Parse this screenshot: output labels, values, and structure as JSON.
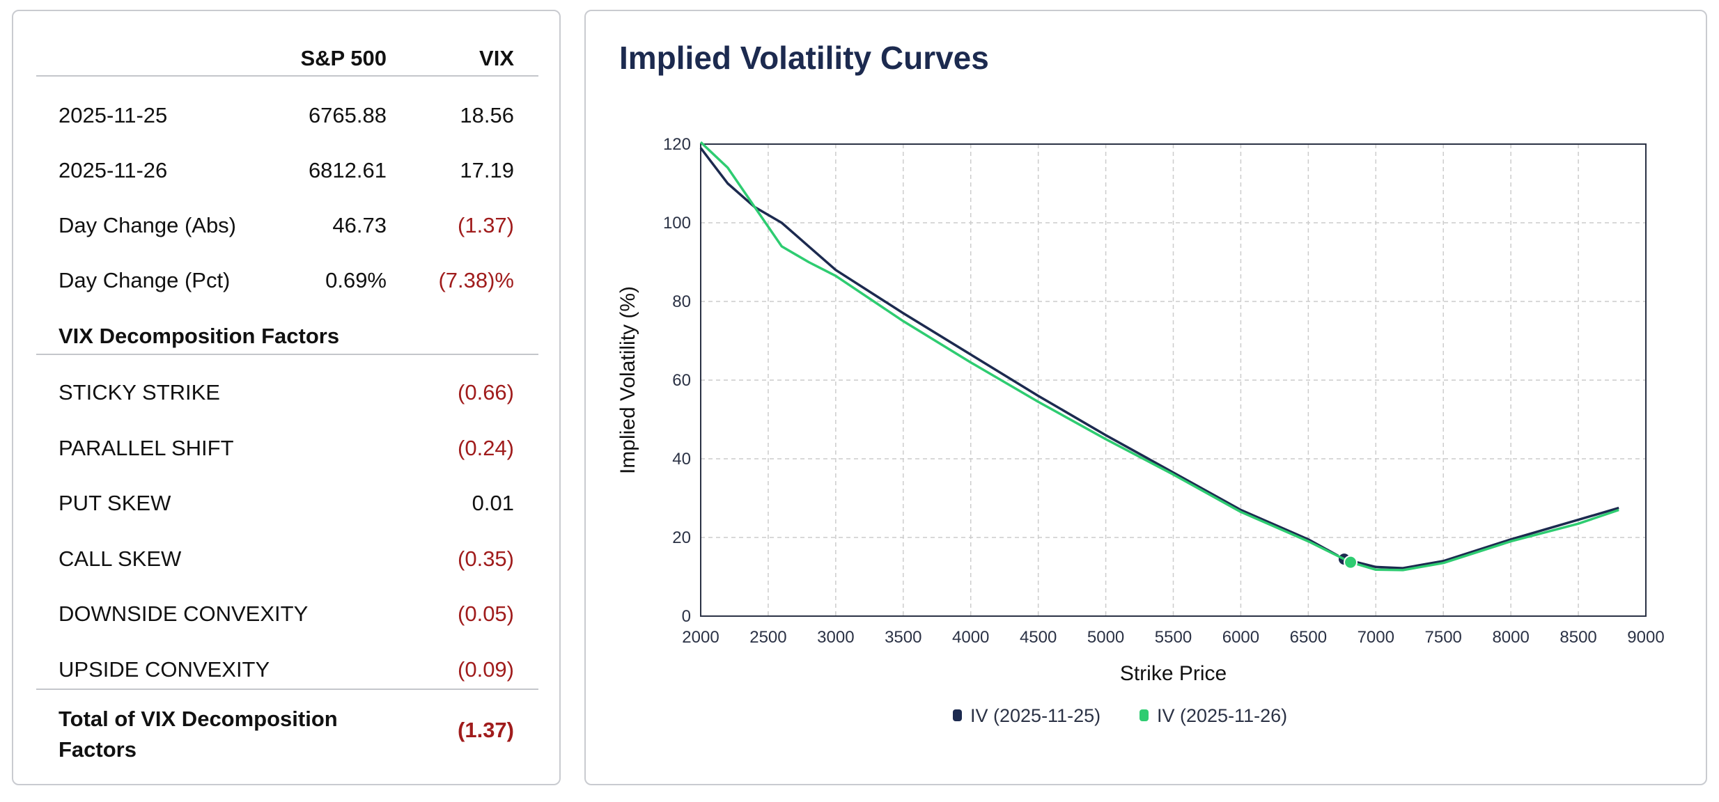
{
  "table": {
    "headers": [
      "",
      "S&P 500",
      "VIX"
    ],
    "rows": [
      {
        "label": "2025-11-25",
        "spx": "6765.88",
        "vix": "18.56",
        "vix_negative": false
      },
      {
        "label": "2025-11-26",
        "spx": "6812.61",
        "vix": "17.19",
        "vix_negative": false
      },
      {
        "label": "Day Change (Abs)",
        "spx": "46.73",
        "vix": "(1.37)",
        "vix_negative": true
      },
      {
        "label": "Day Change (Pct)",
        "spx": "0.69%",
        "vix": "(7.38)%",
        "vix_negative": true
      }
    ],
    "factors_heading": "VIX Decomposition Factors",
    "factors": [
      {
        "label": "STICKY STRIKE",
        "value": "(0.66)",
        "negative": true
      },
      {
        "label": "PARALLEL SHIFT",
        "value": "(0.24)",
        "negative": true
      },
      {
        "label": "PUT SKEW",
        "value": "0.01",
        "negative": false
      },
      {
        "label": "CALL SKEW",
        "value": "(0.35)",
        "negative": true
      },
      {
        "label": "DOWNSIDE CONVEXITY",
        "value": "(0.05)",
        "negative": true
      },
      {
        "label": "UPSIDE CONVEXITY",
        "value": "(0.09)",
        "negative": true
      }
    ],
    "total_label": "Total of VIX Decomposition Factors",
    "total_value": "(1.37)",
    "negative_color": "#a01c1c"
  },
  "chart_data": {
    "type": "line",
    "title": "Implied Volatility Curves",
    "xlabel": "Strike Price",
    "ylabel": "Implied Volatility (%)",
    "xlim": [
      2000,
      9000
    ],
    "ylim": [
      0,
      120
    ],
    "xticks": [
      2000,
      2500,
      3000,
      3500,
      4000,
      4500,
      5000,
      5500,
      6000,
      6500,
      7000,
      7500,
      8000,
      8500,
      9000
    ],
    "yticks": [
      0,
      20,
      40,
      60,
      80,
      100,
      120
    ],
    "grid": true,
    "legend": "bottom",
    "series": [
      {
        "name": "IV (2025-11-25)",
        "color": "#1c2a4f",
        "x": [
          2000,
          2200,
          2400,
          2600,
          2800,
          3000,
          3500,
          4000,
          4500,
          5000,
          5500,
          6000,
          6500,
          6766,
          7000,
          7200,
          7500,
          8000,
          8500,
          8800
        ],
        "y": [
          119,
          110,
          104,
          100,
          94,
          88,
          77,
          66.5,
          56,
          46,
          36.5,
          27,
          19.5,
          14.5,
          12.5,
          12.2,
          14,
          19.5,
          24.5,
          27.5
        ],
        "marker": {
          "x": 6766,
          "y": 14.5
        }
      },
      {
        "name": "IV (2025-11-26)",
        "color": "#2ecc71",
        "x": [
          2000,
          2200,
          2400,
          2500,
          2600,
          2800,
          3000,
          3500,
          4000,
          4500,
          5000,
          5500,
          6000,
          6500,
          6813,
          7000,
          7200,
          7500,
          8000,
          8500,
          8800
        ],
        "y": [
          120.5,
          114,
          104,
          99,
          94,
          90,
          86.5,
          75,
          64.5,
          54.5,
          45,
          36,
          26.5,
          19,
          13.7,
          11.8,
          11.7,
          13.5,
          19,
          23.5,
          27
        ],
        "marker": {
          "x": 6813,
          "y": 13.7
        }
      }
    ]
  }
}
